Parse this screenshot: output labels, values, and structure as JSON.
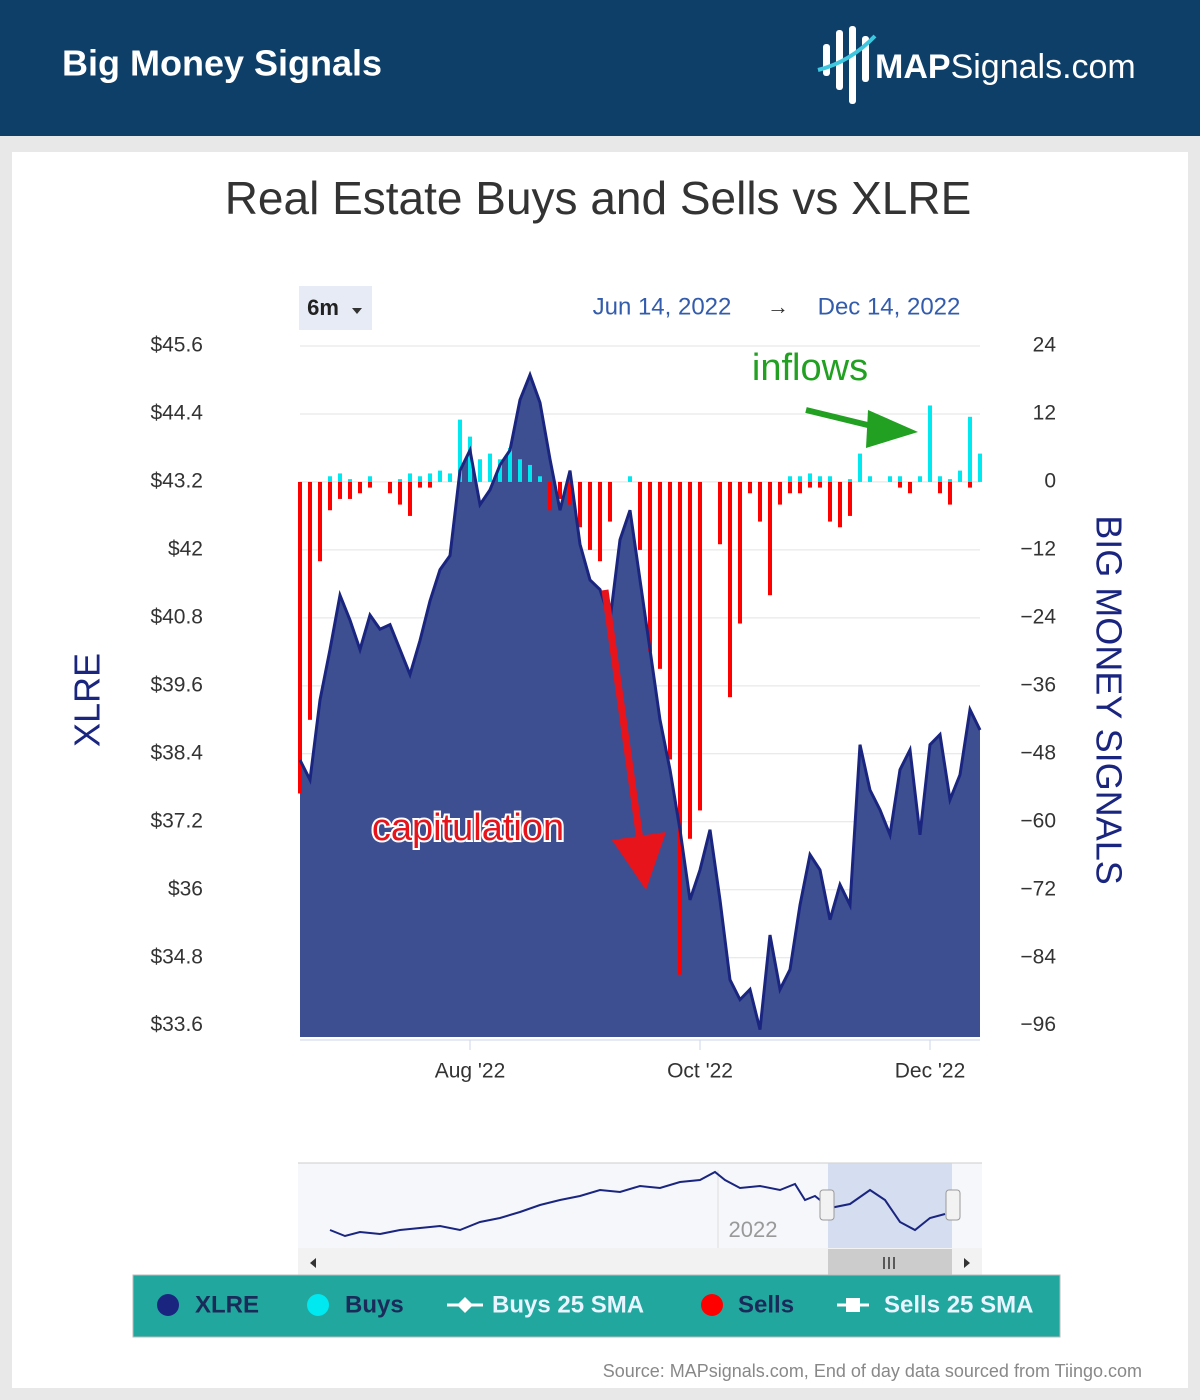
{
  "header": {
    "title": "Big Money Signals",
    "logo_bold": "MAP",
    "logo_rest": "Signals.com"
  },
  "footer": {
    "source": "Source: MAPsignals.com, End of day data sourced from Tiingo.com"
  },
  "chart_data": {
    "type": "bar-area",
    "title": "Real Estate Buys and Sells vs XLRE",
    "range_selector": {
      "button": "6m",
      "from": "Jun 14, 2022",
      "arrow": "→",
      "to": "Dec 14, 2022"
    },
    "y_label": "XLRE",
    "y2_label": "BIG MONEY SIGNALS",
    "navigator_label": "2022",
    "categories": [
      null,
      null,
      null,
      null,
      null,
      null,
      null,
      null,
      null,
      null,
      null,
      null,
      null,
      null,
      null,
      null,
      null,
      "Aug '22",
      null,
      null,
      null,
      null,
      null,
      null,
      null,
      null,
      null,
      null,
      null,
      null,
      null,
      null,
      null,
      null,
      null,
      null,
      null,
      null,
      null,
      null,
      "Oct '22",
      null,
      null,
      null,
      null,
      null,
      null,
      null,
      null,
      null,
      null,
      null,
      null,
      null,
      null,
      null,
      null,
      null,
      null,
      null,
      null,
      null,
      null,
      "Dec '22",
      null,
      null,
      null,
      null,
      null
    ],
    "series": [
      {
        "name": "XLRE",
        "color": "#1a2580",
        "fill": "#3d4f91",
        "values": [
          38.29,
          37.94,
          39.35,
          40.24,
          41.2,
          40.76,
          40.24,
          40.85,
          40.6,
          40.68,
          40.24,
          39.8,
          40.4,
          41.1,
          41.65,
          41.9,
          43.4,
          43.76,
          42.8,
          43.06,
          43.5,
          43.76,
          44.65,
          45.09,
          44.6,
          43.6,
          42.7,
          43.4,
          42.1,
          41.47,
          41.3,
          40.76,
          42.18,
          42.7,
          41.47,
          40.24,
          39.0,
          38.12,
          37.06,
          35.82,
          36.35,
          37.06,
          35.82,
          34.41,
          34.06,
          34.24,
          33.53,
          35.2,
          34.24,
          34.59,
          35.73,
          36.62,
          36.35,
          35.47,
          36.09,
          35.73,
          38.56,
          37.76,
          37.41,
          36.97,
          38.12,
          38.47,
          36.97,
          38.56,
          38.74,
          37.59,
          38.03,
          39.18,
          38.82
        ]
      },
      {
        "name": "Buys",
        "color": "#00e8f0",
        "axis": "y2",
        "values": [
          null,
          null,
          null,
          1,
          1.5,
          0.5,
          null,
          1,
          null,
          null,
          0.5,
          1.5,
          1,
          1.5,
          2,
          1.5,
          11,
          8,
          4,
          5,
          4,
          6,
          4,
          3,
          1,
          null,
          null,
          null,
          null,
          null,
          null,
          null,
          null,
          1,
          null,
          null,
          null,
          null,
          null,
          null,
          null,
          null,
          null,
          null,
          null,
          null,
          null,
          null,
          null,
          1,
          1,
          1.5,
          1,
          1,
          null,
          0.5,
          5,
          1,
          null,
          1,
          1,
          null,
          1,
          13.5,
          1,
          0.5,
          2,
          11.5,
          5
        ]
      },
      {
        "name": "Sells",
        "color": "#ff0000",
        "axis": "y2",
        "values": [
          -55,
          -42,
          -14,
          -5,
          -3,
          -3,
          -2,
          -1,
          null,
          -2,
          -4,
          -6,
          -1,
          -1,
          null,
          null,
          null,
          null,
          null,
          null,
          null,
          null,
          null,
          null,
          null,
          -5,
          -3,
          -4,
          -8,
          -12,
          -14,
          -7,
          null,
          null,
          -12,
          -30,
          -33,
          -49,
          -87,
          -63,
          -58,
          null,
          -11,
          -38,
          -25,
          -2,
          -7,
          -20,
          -4,
          -2,
          -2,
          -1,
          -1,
          -7,
          -8,
          -6,
          null,
          null,
          null,
          null,
          -1,
          -2,
          null,
          null,
          -2,
          -4,
          null,
          -1,
          null
        ]
      }
    ],
    "legend_extra": [
      {
        "name": "Buys 25 SMA",
        "color": "#ffffff",
        "symbol": "line-dot"
      },
      {
        "name": "Sells 25 SMA",
        "color": "#ffffff",
        "symbol": "square"
      }
    ],
    "ylim": [
      33.4,
      45.6
    ],
    "yticks": [
      {
        "value": 45.6,
        "label": "$45.6"
      },
      {
        "value": 44.4,
        "label": "$44.4"
      },
      {
        "value": 43.2,
        "label": "$43.2"
      },
      {
        "value": 42,
        "label": "$42"
      },
      {
        "value": 40.8,
        "label": "$40.8"
      },
      {
        "value": 39.6,
        "label": "$39.6"
      },
      {
        "value": 38.4,
        "label": "$38.4"
      },
      {
        "value": 37.2,
        "label": "$37.2"
      },
      {
        "value": 36,
        "label": "$36"
      },
      {
        "value": 34.8,
        "label": "$34.8"
      },
      {
        "value": 33.6,
        "label": "$33.6"
      }
    ],
    "y2lim": [
      -98,
      24
    ],
    "y2ticks": [
      24,
      12,
      0,
      {
        "value": -12,
        "label": "−12"
      },
      {
        "value": -24,
        "label": "−24"
      },
      {
        "value": -36,
        "label": "−36"
      },
      {
        "value": -48,
        "label": "−48"
      },
      {
        "value": -60,
        "label": "−60"
      },
      {
        "value": -72,
        "label": "−72"
      },
      {
        "value": -84,
        "label": "−84"
      },
      {
        "value": -96,
        "label": "−96"
      }
    ],
    "grid": true,
    "annotations": [
      {
        "text": "inflows",
        "color": "#22a022"
      },
      {
        "text": "capitulation",
        "color": "#e8141c"
      }
    ]
  }
}
